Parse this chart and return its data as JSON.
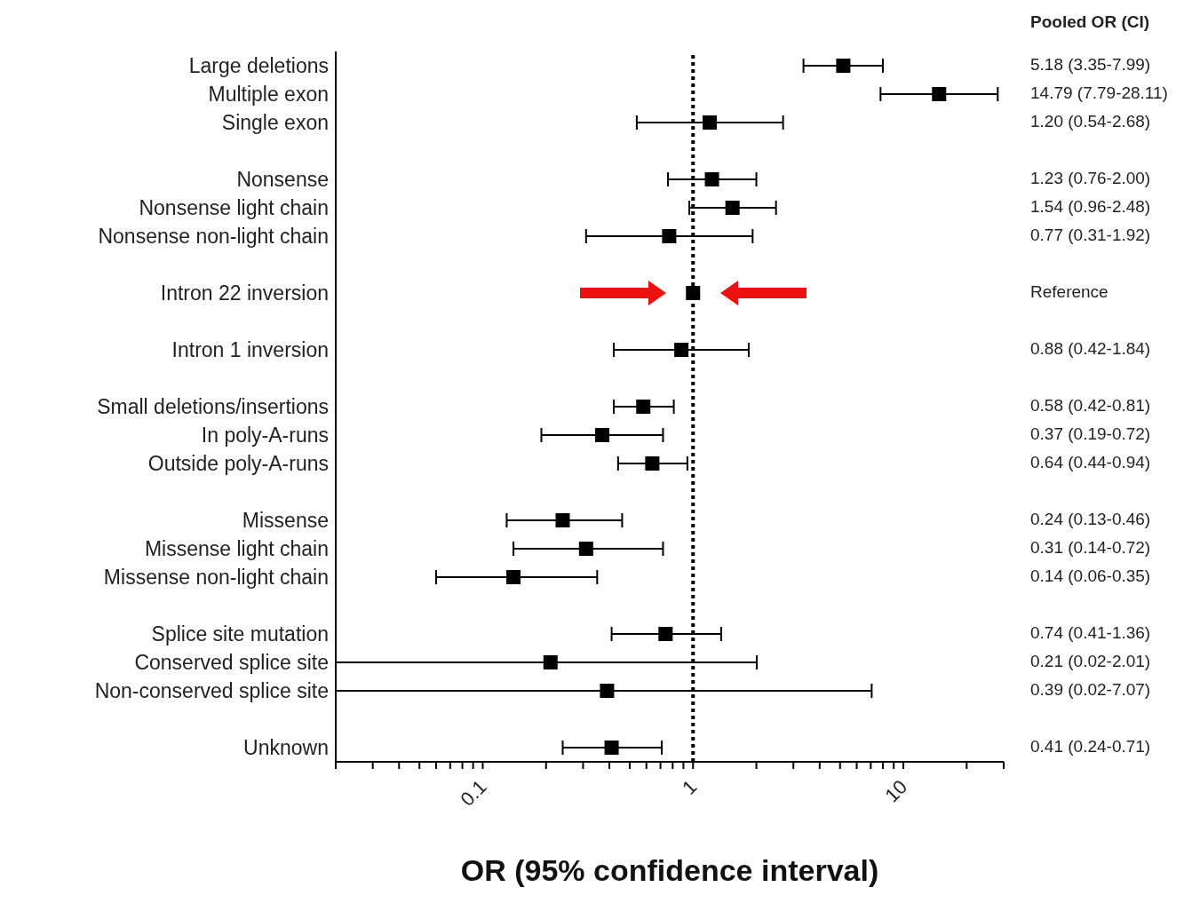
{
  "chart_data": {
    "type": "scatter",
    "orientation": "horizontal",
    "xlabel": "OR (95% confidence interval)",
    "log": "x",
    "annotations": [
      "Pooled OR (CI)",
      "5.18 (3.35-7.99)",
      "14.79 (7.79-28.11)",
      "1.20 (0.54-2.68)",
      "1.23 (0.76-2.00)",
      "1.54 (0.96-2.48)",
      "0.77 (0.31-1.92)",
      "Reference",
      "0.88 (0.42-1.84)",
      "0.58 (0.42-0.81)",
      "0.37 (0.19-0.72)",
      "0.64 (0.44-0.94)",
      "0.24 (0.13-0.46)",
      "0.31 (0.14-0.72)",
      "0.14 (0.06-0.35)",
      "0.74 (0.41-1.36)",
      "0.21 (0.02-2.01)",
      "0.39 (0.02-7.07)",
      "0.41 (0.24-0.71)"
    ],
    "categories": [
      "Large deletions",
      "Multiple exon",
      "Single exon",
      null,
      "Nonsense",
      "Nonsense light chain",
      "Nonsense non-light chain",
      null,
      "Intron 22 inversion",
      null,
      "Intron 1 inversion",
      null,
      "Small deletions/insertions",
      "In poly-A-runs",
      "Outside poly-A-runs",
      null,
      "Missense",
      "Missense light chain",
      "Missense non-light chain",
      null,
      "Splice site mutation",
      "Conserved splice site",
      "Non-conserved splice site",
      null,
      "Unknown"
    ],
    "values": [
      5.18,
      14.79,
      1.2,
      null,
      1.23,
      1.54,
      0.77,
      null,
      1,
      null,
      0.88,
      null,
      0.58,
      0.37,
      0.64,
      null,
      0.24,
      0.31,
      0.14,
      null,
      0.74,
      0.21,
      0.39,
      null,
      0.41
    ],
    "errors": [
      [
        3.35,
        7.99
      ],
      [
        7.79,
        28.11
      ],
      [
        0.54,
        2.68
      ],
      null,
      [
        0.76,
        2.0
      ],
      [
        0.96,
        2.48
      ],
      [
        0.31,
        1.92
      ],
      null,
      null,
      null,
      [
        0.42,
        1.84
      ],
      null,
      [
        0.42,
        0.81
      ],
      [
        0.19,
        0.72
      ],
      [
        0.44,
        0.94
      ],
      null,
      [
        0.13,
        0.46
      ],
      [
        0.14,
        0.72
      ],
      [
        0.06,
        0.35
      ],
      null,
      [
        0.41,
        1.36
      ],
      [
        0.02,
        2.01
      ],
      [
        0.02,
        7.07
      ],
      null,
      [
        0.24,
        0.71
      ]
    ],
    "color": "#000000",
    "marker": "square",
    "grid": false,
    "legend": false,
    "xlim": [
      0.02,
      30
    ],
    "xticks": [
      {
        "value": 0.02,
        "label": null
      },
      {
        "value": 0.03,
        "label": null
      },
      {
        "value": 0.04,
        "label": null
      },
      {
        "value": 0.05,
        "label": null
      },
      {
        "value": 0.06,
        "label": null
      },
      {
        "value": 0.07,
        "label": null
      },
      {
        "value": 0.08,
        "label": null
      },
      {
        "value": 0.09,
        "label": null
      },
      0.1,
      {
        "value": 0.2,
        "label": null
      },
      {
        "value": 0.3,
        "label": null
      },
      {
        "value": 0.4,
        "label": null
      },
      {
        "value": 0.5,
        "label": null
      },
      {
        "value": 0.6,
        "label": null
      },
      {
        "value": 0.7,
        "label": null
      },
      {
        "value": 0.8,
        "label": null
      },
      {
        "value": 0.9,
        "label": null
      },
      1,
      {
        "value": 2,
        "label": null
      },
      {
        "value": 3,
        "label": null
      },
      {
        "value": 4,
        "label": null
      },
      {
        "value": 5,
        "label": null
      },
      {
        "value": 6,
        "label": null
      },
      {
        "value": 7,
        "label": null
      },
      {
        "value": 8,
        "label": null
      },
      {
        "value": 9,
        "label": null
      },
      10,
      {
        "value": 20,
        "label": null
      },
      {
        "value": 30,
        "label": null
      }
    ],
    "ref_lines": [
      {
        "axis": "x",
        "value": 1,
        "line_style": "dotted",
        "color": "#000000"
      }
    ]
  }
}
